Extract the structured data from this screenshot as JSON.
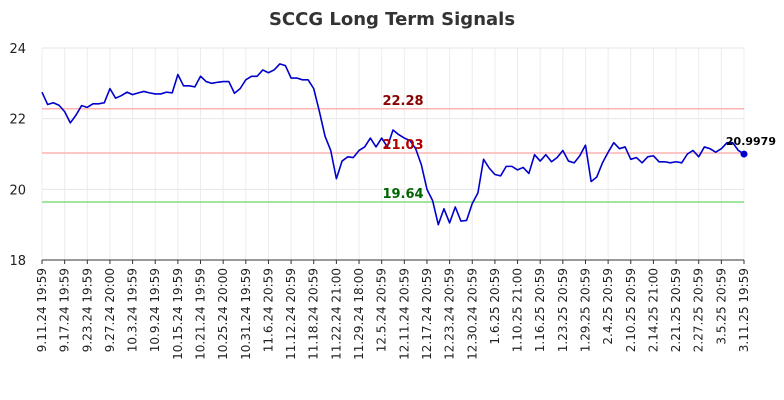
{
  "chart_data": {
    "type": "line",
    "title": "SCCG Long Term Signals",
    "xlabel": "",
    "ylabel": "",
    "ylim": [
      18,
      24
    ],
    "yticks": [
      18,
      20,
      22,
      24
    ],
    "grid": true,
    "x_tick_labels": [
      "9.11.24 19:59",
      "9.17.24 19:59",
      "9.23.24 19:59",
      "9.27.24 20:00",
      "10.3.24 19:59",
      "10.9.24 19:59",
      "10.15.24 19:59",
      "10.21.24 19:59",
      "10.25.24 20:00",
      "10.31.24 19:59",
      "11.6.24 20:59",
      "11.12.24 20:59",
      "11.18.24 20:59",
      "11.22.24 21:00",
      "11.29.24 18:00",
      "12.5.24 20:59",
      "12.11.24 20:59",
      "12.17.24 20:59",
      "12.23.24 20:59",
      "12.30.24 20:59",
      "1.6.25 20:59",
      "1.10.25 21:00",
      "1.16.25 20:59",
      "1.23.25 20:59",
      "1.29.25 20:59",
      "2.4.25 20:59",
      "2.10.25 20:59",
      "2.14.25 21:00",
      "2.21.25 20:59",
      "2.27.25 20:59",
      "3.5.25 20:59",
      "3.11.25 19:59"
    ],
    "series": [
      {
        "color": "#0000cc",
        "values": [
          22.75,
          22.4,
          22.45,
          22.38,
          22.2,
          21.88,
          22.1,
          22.37,
          22.32,
          22.42,
          22.42,
          22.45,
          22.85,
          22.58,
          22.65,
          22.75,
          22.68,
          22.73,
          22.77,
          22.73,
          22.7,
          22.7,
          22.75,
          22.73,
          23.25,
          22.93,
          22.93,
          22.9,
          23.2,
          23.05,
          23.0,
          23.03,
          23.05,
          23.05,
          22.72,
          22.85,
          23.1,
          23.2,
          23.2,
          23.38,
          23.3,
          23.38,
          23.55,
          23.5,
          23.15,
          23.15,
          23.1,
          23.1,
          22.85,
          22.2,
          21.5,
          21.1,
          20.3,
          20.8,
          20.92,
          20.9,
          21.1,
          21.2,
          21.45,
          21.2,
          21.45,
          21.2,
          21.68,
          21.55,
          21.45,
          21.38,
          21.15,
          20.7,
          20.0,
          19.68,
          19.0,
          19.45,
          19.05,
          19.5,
          19.1,
          19.12,
          19.6,
          19.9,
          20.85,
          20.6,
          20.42,
          20.38,
          20.65,
          20.65,
          20.55,
          20.62,
          20.45,
          20.98,
          20.8,
          20.98,
          20.78,
          20.9,
          21.1,
          20.8,
          20.75,
          20.95,
          21.25,
          20.22,
          20.35,
          20.75,
          21.05,
          21.32,
          21.15,
          21.2,
          20.85,
          20.9,
          20.75,
          20.92,
          20.95,
          20.78,
          20.78,
          20.75,
          20.78,
          20.75,
          21.0,
          21.1,
          20.92,
          21.2,
          21.15,
          21.05,
          21.15,
          21.32,
          21.32,
          21.1,
          20.9979
        ]
      }
    ],
    "reference_lines": [
      {
        "value": 22.28,
        "label": "22.28",
        "line_color": "#ffb3b3",
        "label_color": "#8b0000"
      },
      {
        "value": 21.03,
        "label": "21.03",
        "line_color": "#ffb3b3",
        "label_color": "#b30000"
      },
      {
        "value": 19.64,
        "label": "19.64",
        "line_color": "#80dd80",
        "label_color": "#006400"
      }
    ],
    "last_value_label": "20.9979"
  }
}
